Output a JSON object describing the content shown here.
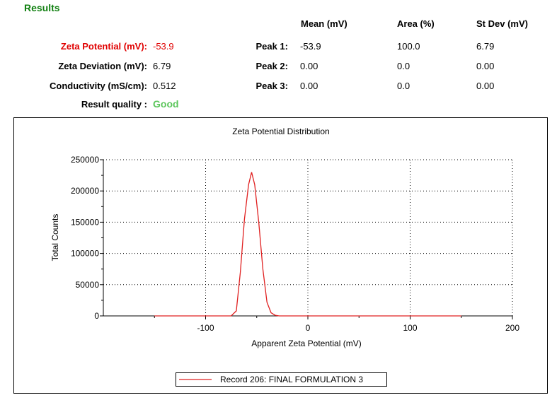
{
  "header": {
    "title": "Results",
    "col_mean": "Mean (mV)",
    "col_area": "Area (%)",
    "col_stdev": "St Dev (mV)"
  },
  "colors": {
    "title": "#118011",
    "zeta_highlight": "#e00000",
    "quality_good": "#5cc65c",
    "series": "#e02020"
  },
  "results": {
    "zeta_label": "Zeta Potential (mV):",
    "zeta_value": "-53.9",
    "deviation_label": "Zeta Deviation (mV):",
    "deviation_value": "6.79",
    "conductivity_label": "Conductivity (mS/cm):",
    "conductivity_value": "0.512",
    "quality_label": "Result quality :",
    "quality_value": "Good"
  },
  "peaks": [
    {
      "label": "Peak 1:",
      "mean": "-53.9",
      "area": "100.0",
      "stdev": "6.79"
    },
    {
      "label": "Peak 2:",
      "mean": "0.00",
      "area": "0.0",
      "stdev": "0.00"
    },
    {
      "label": "Peak 3:",
      "mean": "0.00",
      "area": "0.0",
      "stdev": "0.00"
    }
  ],
  "chart_data": {
    "type": "line",
    "title": "Zeta Potential Distribution",
    "xlabel": "Apparent Zeta Potential (mV)",
    "ylabel": "Total Counts",
    "xlim": [
      -200,
      200
    ],
    "ylim": [
      0,
      250000
    ],
    "x_ticks": [
      -100,
      0,
      100,
      200
    ],
    "y_ticks": [
      0,
      50000,
      100000,
      150000,
      200000,
      250000
    ],
    "grid": true,
    "legend_position": "bottom-center",
    "series": [
      {
        "name": "Record 206: FINAL FORMULATION 3",
        "x": [
          -150,
          -75,
          -70,
          -66,
          -62,
          -58,
          -55,
          -52,
          -48,
          -44,
          -40,
          -36,
          -32,
          -28,
          150
        ],
        "y": [
          0,
          0,
          8000,
          70000,
          155000,
          210000,
          230000,
          210000,
          150000,
          75000,
          22000,
          5000,
          1000,
          0,
          0
        ]
      }
    ]
  }
}
